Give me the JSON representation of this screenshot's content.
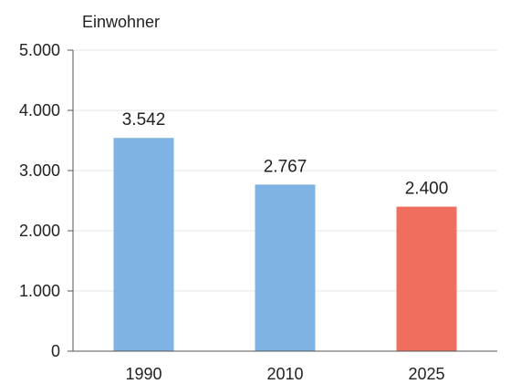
{
  "chart_data": {
    "type": "bar",
    "ylabel": "Einwohner",
    "categories": [
      "1990",
      "2010",
      "2025"
    ],
    "values": [
      3542,
      2767,
      2400
    ],
    "value_labels": [
      "3.542",
      "2.767",
      "2.400"
    ],
    "bar_colors": [
      "#7fb3e3",
      "#7fb3e3",
      "#ef6e5e"
    ],
    "ylim": [
      0,
      5000
    ],
    "yticks": [
      0,
      1000,
      2000,
      3000,
      4000,
      5000
    ],
    "ytick_labels": [
      "0",
      "1.000",
      "2.000",
      "3.000",
      "4.000",
      "5.000"
    ],
    "grid": true,
    "legend": "none"
  }
}
